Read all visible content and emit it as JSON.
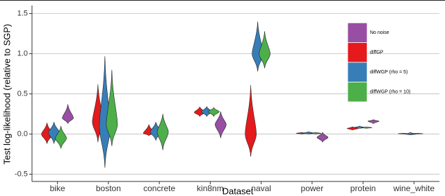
{
  "chart_data": {
    "type": "violin",
    "x_label": "Dataset",
    "y_label": "Test log-likelihood (relative to SGP)",
    "categories": [
      "bike",
      "boston",
      "concrete",
      "kin8nm",
      "naval",
      "power",
      "protein",
      "wine_white"
    ],
    "ylim": [
      -0.59,
      1.6
    ],
    "yticks": [
      -0.5,
      {
        "value": 0,
        "label": "0.0"
      },
      0.5,
      {
        "value": 1,
        "label": "1.0"
      },
      1.5
    ],
    "grid": true,
    "legend": "top-right",
    "series": [
      {
        "name": "No noise",
        "color": "#984ea3",
        "min": [
          0.13,
          null,
          null,
          -0.05,
          null,
          -0.1,
          0.13,
          null
        ],
        "peak": [
          0.2,
          null,
          null,
          0.12,
          null,
          -0.04,
          0.16,
          null
        ],
        "max": [
          0.37,
          null,
          null,
          0.28,
          null,
          0.02,
          0.18,
          null
        ]
      },
      {
        "name": "diffGP",
        "color": "#e41a1c",
        "min": [
          -0.12,
          -0.1,
          -0.02,
          0.22,
          -0.28,
          0.0,
          0.05,
          0.0
        ],
        "peak": [
          0.0,
          0.15,
          0.01,
          0.27,
          0.0,
          0.01,
          0.07,
          0.005
        ],
        "max": [
          0.14,
          0.62,
          0.12,
          0.34,
          0.61,
          0.02,
          0.09,
          0.01
        ]
      },
      {
        "name": "diffWGP (rho = 5)",
        "color": "#377eb8",
        "min": [
          -0.12,
          -0.42,
          -0.08,
          0.22,
          0.78,
          0.0,
          0.07,
          -0.01
        ],
        "peak": [
          0.02,
          0.1,
          0.03,
          0.28,
          1.0,
          0.01,
          0.08,
          0.0
        ],
        "max": [
          0.15,
          0.97,
          0.15,
          0.34,
          1.4,
          0.03,
          0.1,
          0.02
        ]
      },
      {
        "name": "diffWGP (rho = 10)",
        "color": "#4daf4a",
        "min": [
          -0.18,
          -0.15,
          -0.2,
          0.22,
          0.82,
          0.0,
          0.07,
          0.0
        ],
        "peak": [
          -0.05,
          0.12,
          0.03,
          0.28,
          1.0,
          0.01,
          0.08,
          0.005
        ],
        "max": [
          0.1,
          0.8,
          0.25,
          0.33,
          1.28,
          0.02,
          0.09,
          0.01
        ]
      }
    ]
  }
}
